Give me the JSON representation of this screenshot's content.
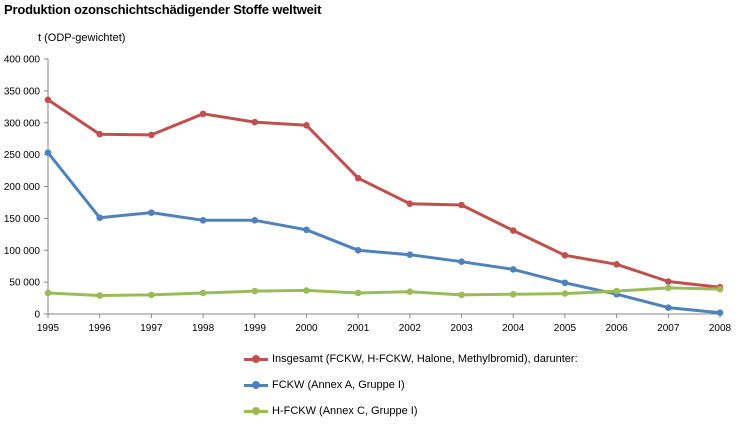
{
  "title": "Produktion ozonschichtschädigender Stoffe weltweit",
  "chart_data": {
    "type": "line",
    "title": "Produktion ozonschichtschädigender Stoffe weltweit",
    "ylabel": "t (ODP-gewichtet)",
    "xlabel": "",
    "x": [
      "1995",
      "1996",
      "1997",
      "1998",
      "1999",
      "2000",
      "2001",
      "2002",
      "2003",
      "2004",
      "2005",
      "2006",
      "2007",
      "2008"
    ],
    "ylim": [
      0,
      400000
    ],
    "yticks": [
      0,
      50000,
      100000,
      150000,
      200000,
      250000,
      300000,
      350000,
      400000
    ],
    "ytick_labels": [
      "0",
      "50 000",
      "100 000",
      "150 000",
      "200 000",
      "250 000",
      "300 000",
      "350 000",
      "400 000"
    ],
    "grid": false,
    "legend_position": "bottom",
    "series": [
      {
        "name": "Insgesamt (FCKW, H-FCKW, Halone, Methylbromid), darunter:",
        "color": "#c0504d",
        "values": [
          336000,
          282000,
          281000,
          314000,
          301000,
          296000,
          213000,
          173000,
          171000,
          131000,
          92000,
          78000,
          51000,
          42000
        ]
      },
      {
        "name": "FCKW (Annex A, Gruppe I)",
        "color": "#4f81bd",
        "values": [
          253000,
          151000,
          159000,
          147000,
          147000,
          132000,
          100000,
          93000,
          82000,
          70000,
          49000,
          31000,
          10000,
          2000
        ]
      },
      {
        "name": "H-FCKW (Annex C, Gruppe I)",
        "color": "#9bbb59",
        "values": [
          33000,
          29000,
          30000,
          33000,
          36000,
          37000,
          33000,
          35000,
          30000,
          31000,
          32000,
          36000,
          41000,
          39000
        ]
      }
    ]
  }
}
